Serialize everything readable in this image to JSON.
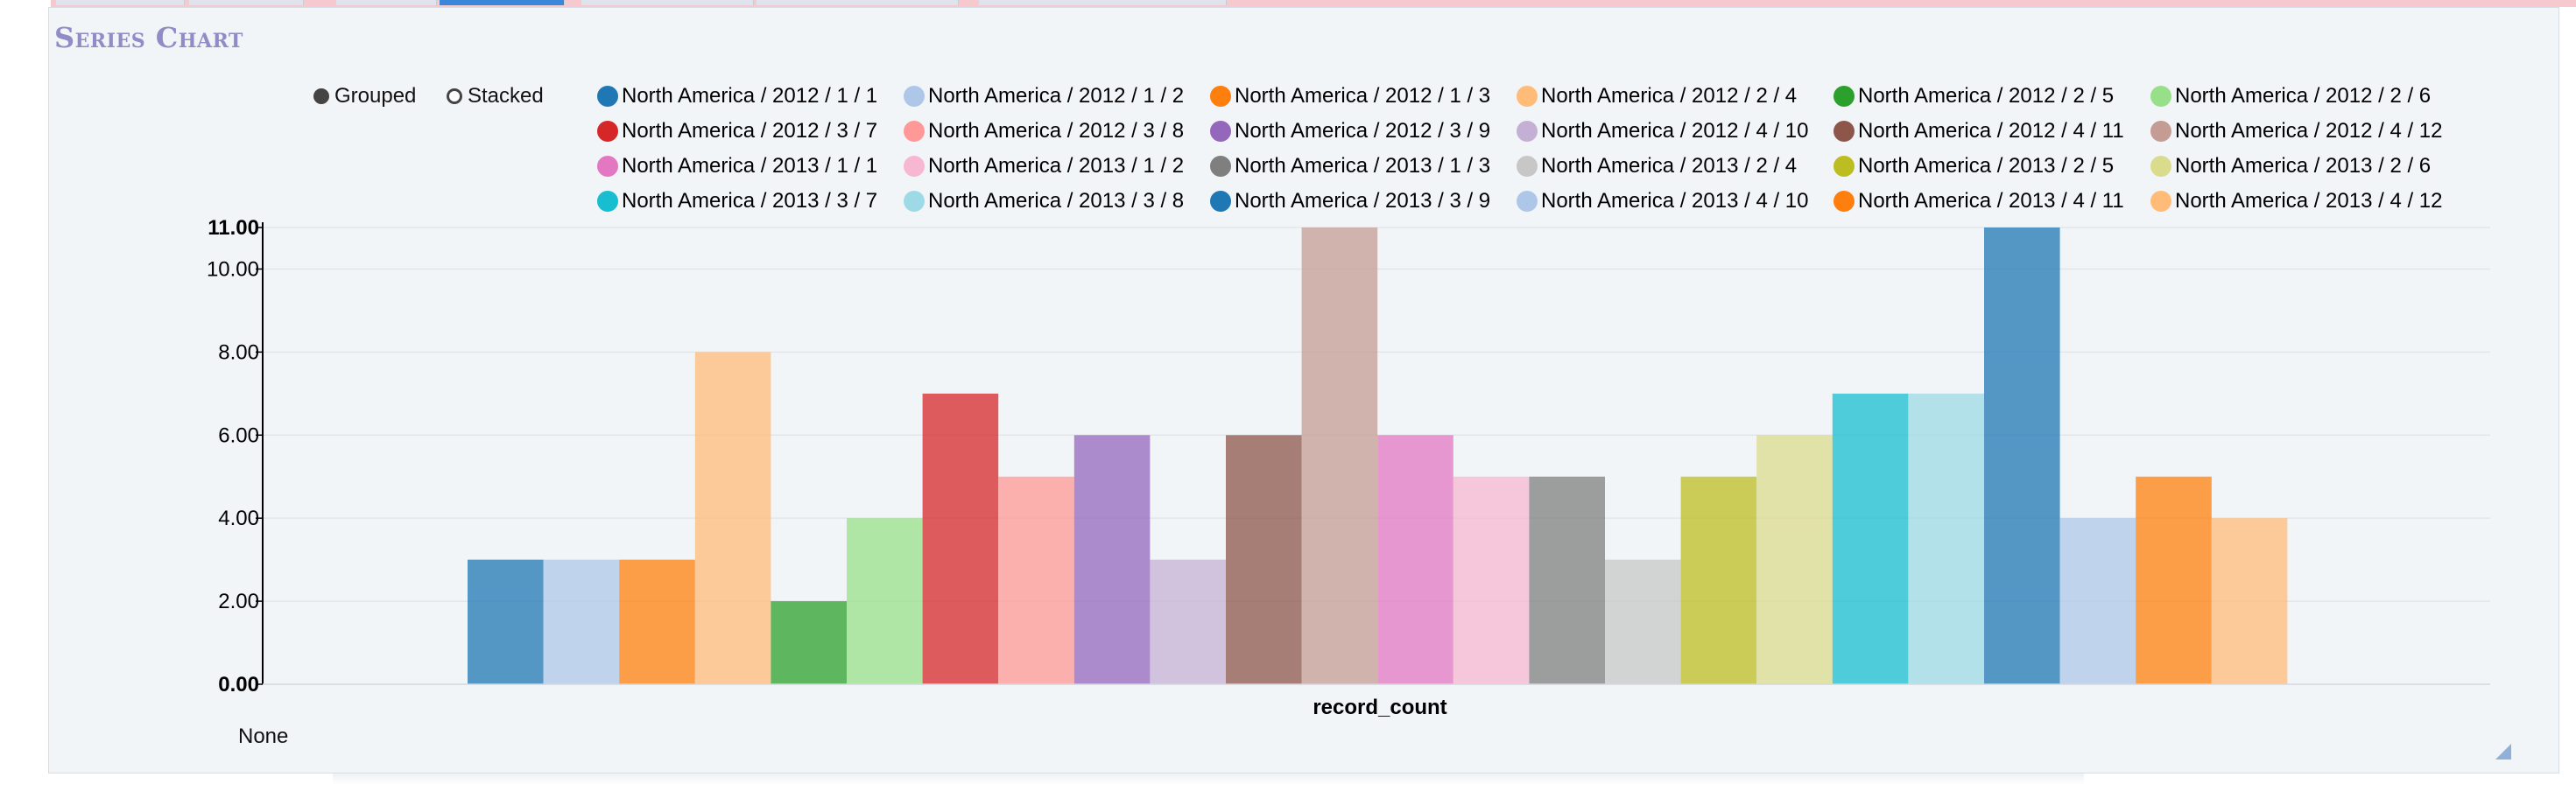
{
  "panel": {
    "title": "Series Chart"
  },
  "modes": [
    {
      "label": "Grouped",
      "selected": true
    },
    {
      "label": "Stacked",
      "selected": false
    }
  ],
  "footer": {
    "label": "None"
  },
  "chart_data": {
    "type": "bar",
    "title": "",
    "xlabel": "record_count",
    "ylabel": "",
    "categories": [
      "record_count"
    ],
    "ylim": [
      0,
      11
    ],
    "yticks": [
      "0.00",
      "2.00",
      "4.00",
      "6.00",
      "8.00",
      "10.00",
      "11.00"
    ],
    "grid": true,
    "legend_position": "top",
    "series": [
      {
        "name": "North America / 2012 / 1 / 1",
        "color": "#1f77b4",
        "values": [
          3
        ]
      },
      {
        "name": "North America / 2012 / 1 / 2",
        "color": "#aec7e8",
        "values": [
          3
        ]
      },
      {
        "name": "North America / 2012 / 1 / 3",
        "color": "#ff7f0e",
        "values": [
          3
        ]
      },
      {
        "name": "North America / 2012 / 2 / 4",
        "color": "#ffbb78",
        "values": [
          8
        ]
      },
      {
        "name": "North America / 2012 / 2 / 5",
        "color": "#2ca02c",
        "values": [
          2
        ]
      },
      {
        "name": "North America / 2012 / 2 / 6",
        "color": "#98df8a",
        "values": [
          4
        ]
      },
      {
        "name": "North America / 2012 / 3 / 7",
        "color": "#d62728",
        "values": [
          7
        ]
      },
      {
        "name": "North America / 2012 / 3 / 8",
        "color": "#ff9896",
        "values": [
          5
        ]
      },
      {
        "name": "North America / 2012 / 3 / 9",
        "color": "#9467bd",
        "values": [
          6
        ]
      },
      {
        "name": "North America / 2012 / 4 / 10",
        "color": "#c5b0d5",
        "values": [
          3
        ]
      },
      {
        "name": "North America / 2012 / 4 / 11",
        "color": "#8c564b",
        "values": [
          6
        ]
      },
      {
        "name": "North America / 2012 / 4 / 12",
        "color": "#c49c94",
        "values": [
          11
        ]
      },
      {
        "name": "North America / 2013 / 1 / 1",
        "color": "#e377c2",
        "values": [
          6
        ]
      },
      {
        "name": "North America / 2013 / 1 / 2",
        "color": "#f7b6d2",
        "values": [
          5
        ]
      },
      {
        "name": "North America / 2013 / 1 / 3",
        "color": "#7f7f7f",
        "values": [
          5
        ]
      },
      {
        "name": "North America / 2013 / 2 / 4",
        "color": "#c7c7c7",
        "values": [
          3
        ]
      },
      {
        "name": "North America / 2013 / 2 / 5",
        "color": "#bcbd22",
        "values": [
          5
        ]
      },
      {
        "name": "North America / 2013 / 2 / 6",
        "color": "#dbdb8d",
        "values": [
          6
        ]
      },
      {
        "name": "North America / 2013 / 3 / 7",
        "color": "#17becf",
        "values": [
          7
        ]
      },
      {
        "name": "North America / 2013 / 3 / 8",
        "color": "#9edae5",
        "values": [
          7
        ]
      },
      {
        "name": "North America / 2013 / 3 / 9",
        "color": "#1f77b4",
        "values": [
          11
        ]
      },
      {
        "name": "North America / 2013 / 4 / 10",
        "color": "#aec7e8",
        "values": [
          4
        ]
      },
      {
        "name": "North America / 2013 / 4 / 11",
        "color": "#ff7f0e",
        "values": [
          5
        ]
      },
      {
        "name": "North America / 2013 / 4 / 12",
        "color": "#ffbb78",
        "values": [
          4
        ]
      }
    ]
  }
}
